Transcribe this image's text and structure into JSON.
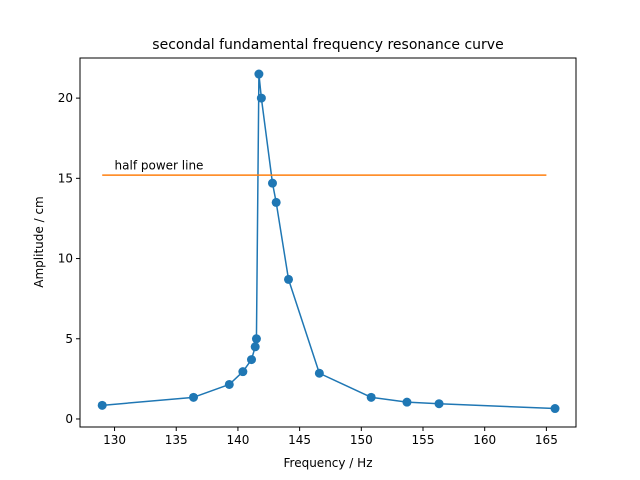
{
  "chart_data": {
    "type": "line",
    "title": "secondal fundamental frequency resonance curve",
    "xlabel": "Frequency / Hz",
    "ylabel": "Amplitude / cm",
    "xlim": [
      127.2,
      167.4
    ],
    "ylim": [
      -0.5,
      22.5
    ],
    "xticks": [
      130,
      135,
      140,
      145,
      150,
      155,
      160,
      165
    ],
    "yticks": [
      0,
      5,
      10,
      15,
      20
    ],
    "grid": false,
    "series": [
      {
        "color": "#1f77b4",
        "marker": "circle",
        "x": [
          129.0,
          136.4,
          139.3,
          140.4,
          141.1,
          141.4,
          141.5,
          141.7,
          141.9,
          142.8,
          143.1,
          144.1,
          146.6,
          150.8,
          153.7,
          156.3,
          165.7
        ],
        "y": [
          0.85,
          1.35,
          2.15,
          2.95,
          3.7,
          4.5,
          5.0,
          21.5,
          20.0,
          14.7,
          13.5,
          8.7,
          2.85,
          1.35,
          1.05,
          0.95,
          0.65
        ]
      },
      {
        "color": "#ff7f0e",
        "marker": "none",
        "x": [
          129.0,
          165.0
        ],
        "y": [
          15.2,
          15.2
        ]
      }
    ],
    "annotations": [
      {
        "text": "half power line",
        "x": 130.0,
        "y": 15.55
      }
    ]
  }
}
